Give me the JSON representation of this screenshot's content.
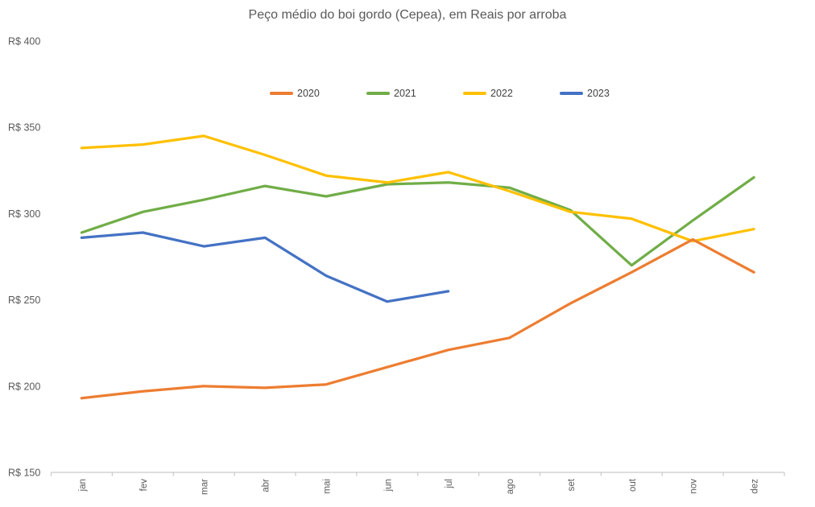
{
  "chart_data": {
    "type": "line",
    "title": "Peço médio do boi gordo (Cepea), em Reais por arroba",
    "categories": [
      "jan",
      "fev",
      "mar",
      "abr",
      "mai",
      "jun",
      "jul",
      "ago",
      "set",
      "out",
      "nov",
      "dez"
    ],
    "series": [
      {
        "name": "2020",
        "color": "#ED7D31",
        "values": [
          193,
          197,
          200,
          199,
          201,
          211,
          221,
          228,
          248,
          266,
          285,
          266
        ]
      },
      {
        "name": "2021",
        "color": "#70AD47",
        "values": [
          289,
          301,
          308,
          316,
          310,
          317,
          318,
          315,
          302,
          270,
          296,
          321
        ]
      },
      {
        "name": "2022",
        "color": "#FFC000",
        "values": [
          338,
          340,
          345,
          334,
          322,
          318,
          324,
          313,
          301,
          297,
          284,
          291
        ]
      },
      {
        "name": "2023",
        "color": "#4472C4",
        "values": [
          286,
          289,
          281,
          286,
          264,
          249,
          255,
          null,
          null,
          null,
          null,
          null
        ]
      }
    ],
    "y_axis": {
      "min": 150,
      "max": 400,
      "step": 50,
      "prefix": "R$ ",
      "tick_labels": [
        "R$ 400",
        "R$ 350",
        "R$ 300",
        "R$ 250",
        "R$ 200",
        "R$ 150"
      ]
    },
    "x_axis": {
      "tick_labels": [
        "jan",
        "fev",
        "mar",
        "abr",
        "mai",
        "jun",
        "jul",
        "ago",
        "set",
        "out",
        "nov",
        "dez"
      ],
      "label_rotation": -90
    },
    "grid": false,
    "legend": {
      "position": "top-center-inside",
      "entries": [
        "2020",
        "2021",
        "2022",
        "2023"
      ]
    },
    "draw_order": [
      1,
      2,
      3,
      0
    ]
  },
  "colors": {
    "background": "#FFFFFF",
    "axis_line": "#C9C9C9",
    "axis_text": "#595959",
    "title_text": "#595959",
    "legend_text": "#404040",
    "series_2020": "#ED7D31",
    "series_2021": "#70AD47",
    "series_2022": "#FFC000",
    "series_2023": "#4472C4"
  }
}
